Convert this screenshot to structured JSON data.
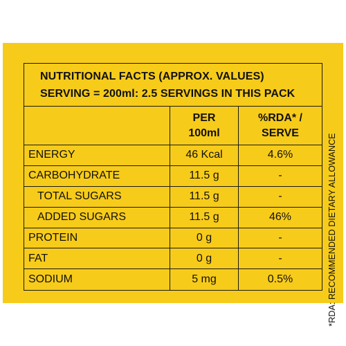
{
  "panel": {
    "background_color": "#f7cb1a",
    "text_color": "#111111"
  },
  "title": {
    "line1": "NUTRITIONAL FACTS  (APPROX. VALUES)",
    "line2": "SERVING = 200ml: 2.5 SERVINGS IN THIS PACK"
  },
  "columns": {
    "per_100ml_line1": "PER",
    "per_100ml_line2": "100ml",
    "rda_line1": "%RDA* /",
    "rda_line2": "SERVE"
  },
  "rows": [
    {
      "name": "ENERGY",
      "value": "46 Kcal",
      "rda": "4.6%"
    },
    {
      "name": "CARBOHYDRATE",
      "value": "11.5 g",
      "rda": "-"
    },
    {
      "name": "TOTAL SUGARS",
      "value": "11.5 g",
      "rda": "-"
    },
    {
      "name": "ADDED SUGARS",
      "value": "11.5 g",
      "rda": "46%"
    },
    {
      "name": "PROTEIN",
      "value": "0 g",
      "rda": "-"
    },
    {
      "name": "FAT",
      "value": "0 g",
      "rda": "-"
    },
    {
      "name": "SODIUM",
      "value": "5 mg",
      "rda": "0.5%"
    }
  ],
  "footnote": "*RDA: RECOMMENDED DIETARY ALLOWANCE"
}
